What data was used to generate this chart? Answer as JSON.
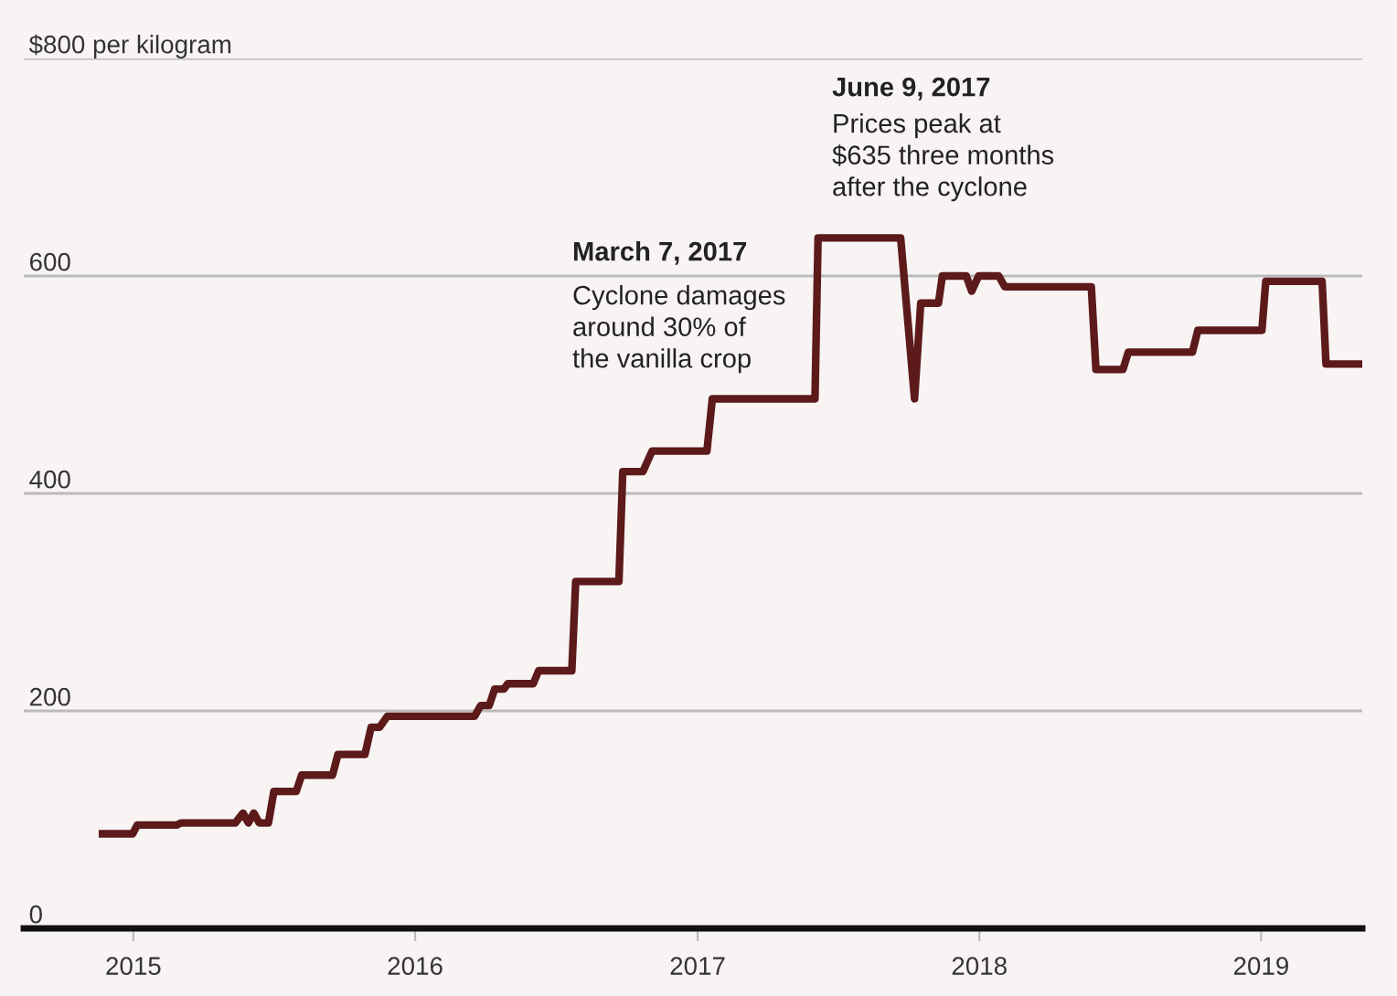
{
  "chart_data": {
    "type": "line",
    "x": [
      "2014-11-22",
      "2014-12-31",
      "2015-01-06",
      "2015-02-26",
      "2015-03-04",
      "2015-05-13",
      "2015-05-23",
      "2015-05-30",
      "2015-06-06",
      "2015-06-13",
      "2015-06-25",
      "2015-07-02",
      "2015-07-31",
      "2015-08-07",
      "2015-09-16",
      "2015-09-23",
      "2015-10-28",
      "2015-11-05",
      "2015-11-16",
      "2015-11-26",
      "2016-03-18",
      "2016-03-26",
      "2016-04-06",
      "2016-04-13",
      "2016-04-25",
      "2016-04-30",
      "2016-06-02",
      "2016-06-09",
      "2016-07-22",
      "2016-07-27",
      "2016-09-21",
      "2016-09-26",
      "2016-10-22",
      "2016-11-03",
      "2017-01-13",
      "2017-01-20",
      "2017-06-02",
      "2017-06-06",
      "2017-09-21",
      "2017-10-09",
      "2017-10-17",
      "2017-11-09",
      "2017-11-14",
      "2017-12-15",
      "2017-12-22",
      "2017-12-31",
      "2018-01-26",
      "2018-02-03",
      "2018-05-26",
      "2018-06-01",
      "2018-07-06",
      "2018-07-13",
      "2018-10-04",
      "2018-10-11",
      "2019-01-02",
      "2019-01-07",
      "2019-03-21",
      "2019-03-26",
      "2019-05-10"
    ],
    "series": [
      {
        "color": "#5c1a1b",
        "values": [
          87,
          87,
          95,
          95,
          97,
          97,
          106,
          97,
          106,
          97,
          97,
          126,
          126,
          141,
          141,
          160,
          160,
          185,
          185,
          195,
          195,
          205,
          205,
          220,
          220,
          225,
          225,
          237,
          237,
          319,
          319,
          420,
          420,
          439,
          439,
          487,
          487,
          635,
          635,
          487,
          575,
          575,
          600,
          600,
          586,
          600,
          600,
          590,
          590,
          514,
          514,
          530,
          530,
          550,
          550,
          595,
          595,
          519,
          519
        ]
      }
    ],
    "xlim": [
      "2014-08-12",
      "2019-05-12"
    ],
    "xticks": [
      {
        "value": "2015-01-01",
        "label": "2015"
      },
      {
        "value": "2016-01-01",
        "label": "2016"
      },
      {
        "value": "2017-01-01",
        "label": "2017"
      },
      {
        "value": "2018-01-01",
        "label": "2018"
      },
      {
        "value": "2019-01-01",
        "label": "2019"
      }
    ],
    "ylim": [
      0,
      800
    ],
    "yticks": [
      0,
      200,
      400,
      600,
      {
        "value": 800,
        "label": "$800 per kilogram"
      }
    ],
    "grid": "y",
    "marker": "none",
    "line_style": "solid",
    "annotations": [
      "March 7, 2017",
      "Cyclone damages\naround 30% of\nthe vanilla crop",
      "June 9, 2017",
      "Prices peak at\n$635 three months\nafter the cyclone"
    ]
  }
}
